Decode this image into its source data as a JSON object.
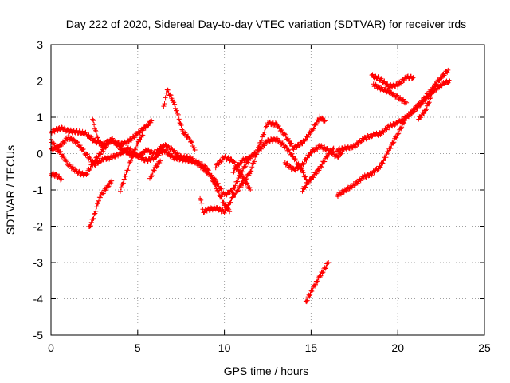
{
  "chart_data": {
    "type": "scatter",
    "title": "Day 222 of 2020, Sidereal Day-to-day VTEC variation (SDTVAR) for receiver trds",
    "xlabel": "GPS time / hours",
    "ylabel": "SDTVAR / TECUs",
    "xlim": [
      0,
      25
    ],
    "ylim": [
      -5,
      3
    ],
    "xticks": [
      0,
      5,
      10,
      15,
      20,
      25
    ],
    "yticks": [
      -5,
      -4,
      -3,
      -2,
      -1,
      0,
      1,
      2,
      3
    ],
    "grid": true,
    "marker": "+",
    "color": "#ff0000",
    "series": [
      {
        "name": "t1",
        "points": [
          [
            0.0,
            0.6
          ],
          [
            0.3,
            0.65
          ],
          [
            0.6,
            0.7
          ],
          [
            1.0,
            0.62
          ],
          [
            1.5,
            0.6
          ],
          [
            2.0,
            0.55
          ],
          [
            2.5,
            0.35
          ],
          [
            3.0,
            0.25
          ],
          [
            3.5,
            0.35
          ],
          [
            4.0,
            0.25
          ],
          [
            4.5,
            0.35
          ],
          [
            5.0,
            0.55
          ],
          [
            5.5,
            0.75
          ],
          [
            5.8,
            0.9
          ]
        ]
      },
      {
        "name": "t2",
        "points": [
          [
            0.0,
            0.1
          ],
          [
            0.5,
            0.2
          ],
          [
            1.0,
            0.45
          ],
          [
            1.5,
            0.3
          ],
          [
            2.0,
            0.0
          ],
          [
            2.5,
            -0.3
          ],
          [
            3.0,
            -0.15
          ],
          [
            3.5,
            -0.1
          ],
          [
            4.0,
            0.0
          ],
          [
            4.5,
            0.15
          ],
          [
            5.0,
            -0.1
          ],
          [
            5.5,
            0.1
          ],
          [
            6.0,
            0.0
          ],
          [
            6.5,
            0.25
          ],
          [
            7.0,
            0.1
          ],
          [
            7.5,
            -0.1
          ],
          [
            8.0,
            -0.1
          ],
          [
            8.5,
            -0.3
          ],
          [
            9.0,
            -0.5
          ],
          [
            9.5,
            -0.75
          ],
          [
            10.0,
            -1.15
          ],
          [
            10.5,
            -1.0
          ],
          [
            11.0,
            -0.5
          ],
          [
            11.5,
            -0.1
          ],
          [
            12.0,
            0.1
          ],
          [
            12.5,
            0.35
          ],
          [
            13.0,
            0.4
          ],
          [
            13.5,
            0.2
          ],
          [
            14.0,
            -0.1
          ],
          [
            14.5,
            -0.5
          ],
          [
            14.8,
            -0.8
          ]
        ]
      },
      {
        "name": "t3",
        "points": [
          [
            0.0,
            0.35
          ],
          [
            0.5,
            0.05
          ],
          [
            1.0,
            -0.3
          ],
          [
            1.5,
            -0.5
          ],
          [
            2.0,
            -0.6
          ],
          [
            2.5,
            -0.2
          ],
          [
            3.0,
            0.1
          ],
          [
            3.5,
            0.4
          ],
          [
            4.0,
            0.15
          ],
          [
            4.5,
            0.0
          ],
          [
            5.0,
            -0.05
          ],
          [
            5.5,
            -0.2
          ],
          [
            6.0,
            -0.1
          ],
          [
            6.5,
            0.1
          ],
          [
            7.0,
            -0.1
          ],
          [
            7.5,
            -0.15
          ],
          [
            8.0,
            -0.2
          ],
          [
            8.5,
            -0.25
          ],
          [
            9.0,
            -0.4
          ],
          [
            9.5,
            -0.9
          ],
          [
            10.0,
            -1.4
          ],
          [
            10.3,
            -1.6
          ]
        ]
      },
      {
        "name": "t4",
        "points": [
          [
            0.0,
            -0.55
          ],
          [
            0.3,
            -0.6
          ],
          [
            0.6,
            -0.7
          ]
        ]
      },
      {
        "name": "t5",
        "points": [
          [
            2.2,
            -2.05
          ],
          [
            2.5,
            -1.7
          ],
          [
            2.8,
            -1.2
          ],
          [
            3.2,
            -0.95
          ],
          [
            3.5,
            -0.75
          ]
        ]
      },
      {
        "name": "t6",
        "points": [
          [
            4.0,
            -1.0
          ],
          [
            4.3,
            -0.6
          ],
          [
            4.6,
            -0.2
          ],
          [
            5.0,
            0.3
          ],
          [
            5.3,
            0.5
          ]
        ]
      },
      {
        "name": "t7",
        "points": [
          [
            2.4,
            0.95
          ],
          [
            2.7,
            0.4
          ],
          [
            3.0,
            0.2
          ],
          [
            3.3,
            0.35
          ]
        ]
      },
      {
        "name": "t8",
        "points": [
          [
            6.5,
            1.3
          ],
          [
            6.7,
            1.75
          ],
          [
            7.0,
            1.5
          ],
          [
            7.3,
            1.1
          ],
          [
            7.6,
            0.6
          ],
          [
            8.0,
            0.4
          ],
          [
            8.3,
            0.1
          ]
        ]
      },
      {
        "name": "t9",
        "points": [
          [
            5.7,
            -0.7
          ],
          [
            6.0,
            -0.4
          ],
          [
            6.3,
            -0.2
          ]
        ]
      },
      {
        "name": "t10",
        "points": [
          [
            8.6,
            -1.2
          ],
          [
            8.8,
            -1.6
          ],
          [
            9.0,
            -1.55
          ],
          [
            9.5,
            -1.5
          ],
          [
            10.0,
            -1.6
          ],
          [
            10.5,
            -1.2
          ],
          [
            11.0,
            -0.85
          ],
          [
            11.5,
            -0.5
          ],
          [
            12.0,
            0.2
          ],
          [
            12.5,
            0.85
          ],
          [
            13.0,
            0.8
          ],
          [
            13.5,
            0.5
          ],
          [
            14.0,
            0.15
          ],
          [
            14.5,
            0.3
          ],
          [
            15.0,
            0.6
          ],
          [
            15.5,
            1.0
          ],
          [
            15.8,
            0.9
          ]
        ]
      },
      {
        "name": "t11",
        "points": [
          [
            9.5,
            -0.35
          ],
          [
            10.0,
            -0.1
          ],
          [
            10.5,
            -0.2
          ],
          [
            11.0,
            -0.6
          ],
          [
            11.5,
            -1.0
          ]
        ]
      },
      {
        "name": "t12",
        "points": [
          [
            10.5,
            -0.5
          ],
          [
            11.0,
            -0.2
          ],
          [
            11.5,
            -0.1
          ]
        ]
      },
      {
        "name": "t13",
        "points": [
          [
            13.5,
            -0.25
          ],
          [
            14.0,
            -0.45
          ],
          [
            14.5,
            -0.3
          ],
          [
            15.0,
            0.05
          ],
          [
            15.5,
            0.2
          ],
          [
            16.0,
            0.1
          ],
          [
            16.5,
            -0.1
          ],
          [
            16.8,
            0.05
          ]
        ]
      },
      {
        "name": "t14",
        "points": [
          [
            14.5,
            -1.0
          ],
          [
            15.0,
            -0.7
          ],
          [
            15.5,
            -0.4
          ],
          [
            16.0,
            0.0
          ],
          [
            16.3,
            0.15
          ]
        ]
      },
      {
        "name": "t15",
        "points": [
          [
            14.7,
            -4.1
          ],
          [
            15.0,
            -3.8
          ],
          [
            15.3,
            -3.55
          ],
          [
            15.6,
            -3.3
          ],
          [
            16.0,
            -3.0
          ]
        ]
      },
      {
        "name": "t16",
        "points": [
          [
            16.5,
            -1.15
          ],
          [
            17.0,
            -1.0
          ],
          [
            17.5,
            -0.85
          ],
          [
            18.0,
            -0.65
          ],
          [
            18.5,
            -0.55
          ],
          [
            19.0,
            -0.35
          ],
          [
            19.5,
            0.1
          ],
          [
            20.0,
            0.55
          ],
          [
            20.5,
            1.0
          ],
          [
            21.0,
            1.25
          ],
          [
            21.5,
            1.5
          ],
          [
            22.0,
            1.8
          ],
          [
            22.5,
            2.1
          ],
          [
            22.9,
            2.3
          ]
        ]
      },
      {
        "name": "t17",
        "points": [
          [
            16.5,
            0.1
          ],
          [
            17.0,
            0.15
          ],
          [
            17.5,
            0.2
          ],
          [
            18.0,
            0.4
          ],
          [
            18.5,
            0.5
          ],
          [
            19.0,
            0.55
          ],
          [
            19.5,
            0.75
          ],
          [
            20.0,
            0.85
          ],
          [
            20.5,
            1.0
          ],
          [
            21.0,
            1.2
          ],
          [
            21.5,
            1.45
          ],
          [
            22.0,
            1.7
          ],
          [
            22.5,
            1.9
          ],
          [
            23.0,
            2.0
          ]
        ]
      },
      {
        "name": "t18",
        "points": [
          [
            18.5,
            2.15
          ],
          [
            19.0,
            2.05
          ],
          [
            19.5,
            1.85
          ],
          [
            20.0,
            1.9
          ],
          [
            20.5,
            2.1
          ],
          [
            20.9,
            2.1
          ]
        ]
      },
      {
        "name": "t19",
        "points": [
          [
            18.6,
            1.9
          ],
          [
            19.0,
            1.8
          ],
          [
            19.5,
            1.7
          ],
          [
            20.0,
            1.55
          ],
          [
            20.5,
            1.4
          ]
        ]
      },
      {
        "name": "t20",
        "points": [
          [
            21.2,
            0.95
          ],
          [
            21.6,
            1.2
          ],
          [
            21.9,
            1.55
          ]
        ]
      }
    ]
  }
}
